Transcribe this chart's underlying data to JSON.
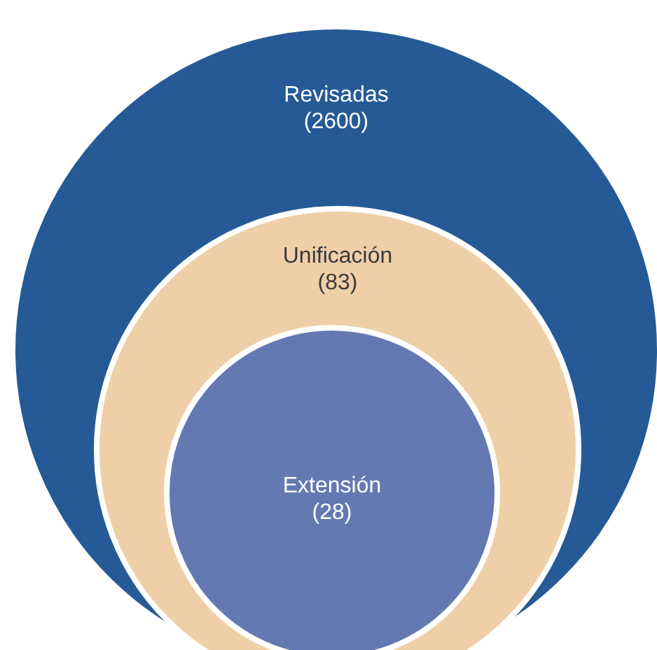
{
  "chart_data": {
    "type": "other",
    "categories": [
      "Revisadas",
      "Unificación",
      "Extensión"
    ],
    "values": [
      2600,
      83,
      28
    ],
    "value_labels": [
      "(2600)",
      "(83)",
      "(28)"
    ],
    "colors": [
      "#255a96",
      "#efcfa7",
      "#6479b2"
    ]
  }
}
